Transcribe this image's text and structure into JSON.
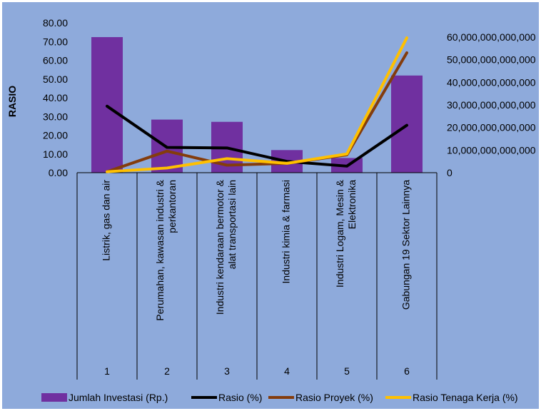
{
  "chart_data": {
    "type": "bar",
    "ylabel": "RASIO",
    "categories": [
      "Listrik, gas dan air",
      "Perumahan, kawasan industri & perkantoran",
      "Industri kendaraan bermotor & alat transportasi lain",
      "Industri kimia & farmasi",
      "Industri Logam, Mesin & Elektronika",
      "Gabungan 19 Sektor Lainnya"
    ],
    "category_lines": [
      [
        "Listrik, gas dan air"
      ],
      [
        "Perumahan, kawasan industri &",
        "perkantoran"
      ],
      [
        "Industri kendaraan bermotor &",
        "alat transportasi lain"
      ],
      [
        "Industri kimia & farmasi"
      ],
      [
        "Industri Logam, Mesin &",
        "Elektronika"
      ],
      [
        "Gabungan 19 Sektor Lainnya"
      ]
    ],
    "category_numbers": [
      "1",
      "2",
      "3",
      "4",
      "5",
      "6"
    ],
    "y_left": {
      "range": [
        0,
        80
      ],
      "ticks": [
        "0.00",
        "10.00",
        "20.00",
        "30.00",
        "40.00",
        "50.00",
        "60.00",
        "70.00",
        "80.00"
      ]
    },
    "y_right": {
      "range": [
        0,
        60000000000000
      ],
      "ticks": [
        "0",
        "10,000,000,000,000",
        "20,000,000,000,000",
        "30,000,000,000,000",
        "40,000,000,000,000",
        "50,000,000,000,000",
        "60,000,000,000,000"
      ]
    },
    "bar_series": {
      "name": "Jumlah Investasi (Rp.)",
      "axis": "right",
      "color": "#7030A0",
      "values": [
        60000000000000,
        23500000000000,
        22500000000000,
        10000000000000,
        6500000000000,
        43000000000000
      ]
    },
    "line_series": [
      {
        "name": "Rasio (%)",
        "axis": "left",
        "color": "#000000",
        "values": [
          35.5,
          13.5,
          13.2,
          6.0,
          3.5,
          25.3
        ]
      },
      {
        "name": "Rasio Proyek (%)",
        "axis": "left",
        "color": "#843C0C",
        "values": [
          0.5,
          11.5,
          4.0,
          5.0,
          9.5,
          64.0
        ]
      },
      {
        "name": "Rasio Tenaga Kerja (%)",
        "axis": "left",
        "color": "#FFC000",
        "values": [
          0.5,
          2.5,
          7.5,
          5.0,
          10.0,
          72.0
        ]
      }
    ],
    "legend": {
      "position": "bottom",
      "items": [
        {
          "label": "Jumlah Investasi   (Rp.)",
          "color": "#7030A0",
          "kind": "bar"
        },
        {
          "label": "Rasio (%)",
          "color": "#000000",
          "kind": "line"
        },
        {
          "label": "Rasio Proyek (%)",
          "color": "#843C0C",
          "kind": "line"
        },
        {
          "label": "Rasio Tenaga Kerja (%)",
          "color": "#FFC000",
          "kind": "line"
        }
      ]
    },
    "colors": {
      "background": "#8EAADB",
      "border": "#FFFFFF",
      "grid": "#000000"
    }
  }
}
